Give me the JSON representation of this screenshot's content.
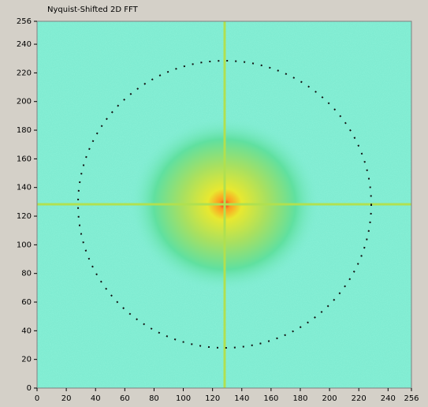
{
  "chart_data": {
    "type": "image",
    "title": "Nyquist-Shifted 2D FFT",
    "xlim": [
      0,
      256
    ],
    "xticks": [
      0,
      20,
      40,
      60,
      80,
      100,
      120,
      140,
      160,
      180,
      200,
      220,
      240,
      256
    ],
    "ylim": [
      0,
      256
    ],
    "yticks": [
      0,
      20,
      40,
      60,
      80,
      100,
      120,
      140,
      160,
      180,
      200,
      220,
      240,
      256
    ]
  }
}
